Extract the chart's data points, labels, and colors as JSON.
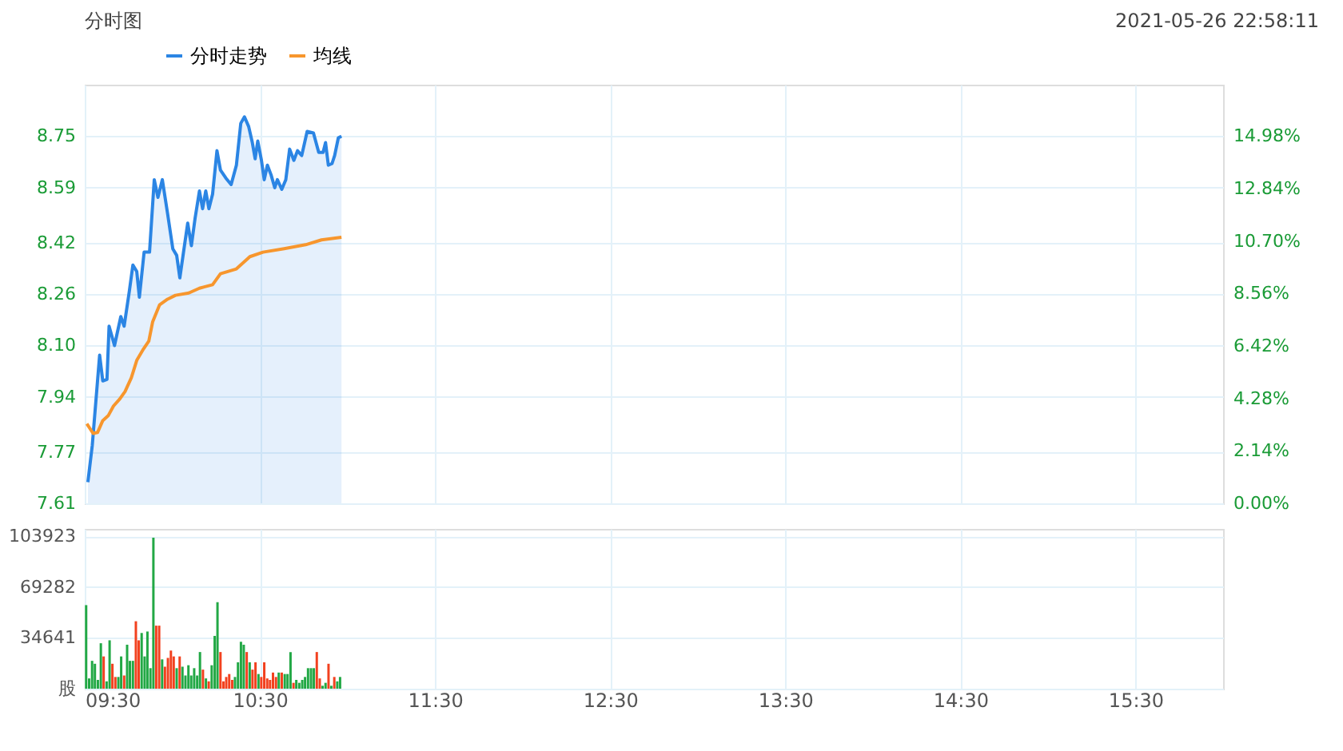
{
  "chart_data": [
    {
      "type": "line",
      "title": "分时图",
      "annotations": [
        "2021-05-26 22:58:11"
      ],
      "legend": "top left",
      "grid": true,
      "tick_labels": "y",
      "xlim": [
        9.5,
        16.0
      ],
      "xticks": [
        {
          "value": 9.5,
          "label": null
        },
        {
          "value": 10.5,
          "label": null
        },
        {
          "value": 11.5,
          "label": null
        },
        {
          "value": 12.5,
          "label": null
        },
        {
          "value": 13.5,
          "label": null
        },
        {
          "value": 14.5,
          "label": null
        },
        {
          "value": 15.5,
          "label": null
        }
      ],
      "ylim": [
        7.61,
        8.91
      ],
      "yticks": [
        {
          "value": 7.61,
          "label": "7.61"
        },
        {
          "value": 7.77,
          "label": "7.77"
        },
        {
          "value": 7.94,
          "label": "7.94"
        },
        {
          "value": 8.1,
          "label": "8.10"
        },
        {
          "value": 8.26,
          "label": "8.26"
        },
        {
          "value": 8.42,
          "label": "8.42"
        },
        {
          "value": 8.59,
          "label": "8.59"
        },
        {
          "value": 8.75,
          "label": "8.75"
        }
      ],
      "y2lim": [
        0,
        17.08
      ],
      "y2ticks": [
        {
          "value": 0,
          "label": "0.00%"
        },
        {
          "value": 2.14,
          "label": "2.14%"
        },
        {
          "value": 4.28,
          "label": "4.28%"
        },
        {
          "value": 6.42,
          "label": "6.42%"
        },
        {
          "value": 8.56,
          "label": "8.56%"
        },
        {
          "value": 10.7,
          "label": "10.70%"
        },
        {
          "value": 12.84,
          "label": "12.84%"
        },
        {
          "value": 14.98,
          "label": "14.98%"
        }
      ],
      "series": [
        {
          "name": "分时走势",
          "type": "area",
          "color": "#2b85e4",
          "x": [
            9.518,
            9.543,
            9.585,
            9.603,
            9.627,
            9.639,
            9.67,
            9.706,
            9.725,
            9.755,
            9.775,
            9.797,
            9.812,
            9.839,
            9.87,
            9.897,
            9.918,
            9.943,
            9.973,
            10.003,
            10.025,
            10.043,
            10.064,
            10.088,
            10.109,
            10.13,
            10.155,
            10.173,
            10.191,
            10.209,
            10.23,
            10.255,
            10.275,
            10.306,
            10.336,
            10.366,
            10.391,
            10.412,
            10.436,
            10.457,
            10.473,
            10.488,
            10.509,
            10.525,
            10.543,
            10.564,
            10.585,
            10.6,
            10.625,
            10.648,
            10.67,
            10.694,
            10.715,
            10.739,
            10.77,
            10.806,
            10.836,
            10.861,
            10.875,
            10.891,
            10.912,
            10.927,
            10.948,
            10.966
          ],
          "values": [
            7.676,
            7.79,
            8.07,
            7.99,
            7.995,
            8.16,
            8.1,
            8.19,
            8.16,
            8.27,
            8.35,
            8.33,
            8.25,
            8.39,
            8.39,
            8.615,
            8.56,
            8.615,
            8.51,
            8.4,
            8.38,
            8.31,
            8.39,
            8.48,
            8.41,
            8.495,
            8.58,
            8.525,
            8.58,
            8.525,
            8.57,
            8.705,
            8.645,
            8.62,
            8.6,
            8.66,
            8.79,
            8.81,
            8.78,
            8.73,
            8.68,
            8.735,
            8.675,
            8.615,
            8.66,
            8.63,
            8.59,
            8.615,
            8.585,
            8.615,
            8.71,
            8.675,
            8.705,
            8.69,
            8.765,
            8.76,
            8.7,
            8.7,
            8.73,
            8.66,
            8.665,
            8.69,
            8.745,
            8.75
          ]
        },
        {
          "name": "均线",
          "type": "line",
          "color": "#f7962d",
          "x": [
            9.512,
            9.548,
            9.573,
            9.603,
            9.634,
            9.664,
            9.7,
            9.73,
            9.766,
            9.797,
            9.836,
            9.866,
            9.888,
            9.927,
            9.973,
            10.018,
            10.094,
            10.155,
            10.23,
            10.275,
            10.366,
            10.443,
            10.518,
            10.639,
            10.761,
            10.852,
            10.966
          ],
          "values": [
            7.857,
            7.827,
            7.83,
            7.867,
            7.882,
            7.912,
            7.934,
            7.957,
            8.0,
            8.054,
            8.09,
            8.114,
            8.174,
            8.226,
            8.244,
            8.256,
            8.263,
            8.278,
            8.289,
            8.323,
            8.338,
            8.376,
            8.39,
            8.401,
            8.413,
            8.428,
            8.436
          ]
        }
      ]
    },
    {
      "type": "bar",
      "grid": true,
      "xlim": [
        9.5,
        16.0
      ],
      "xticks": [
        {
          "value": 9.5,
          "label": "09:30"
        },
        {
          "value": 10.5,
          "label": "10:30"
        },
        {
          "value": 11.5,
          "label": "11:30"
        },
        {
          "value": 12.5,
          "label": "12:30"
        },
        {
          "value": 13.5,
          "label": "13:30"
        },
        {
          "value": 14.5,
          "label": "14:30"
        },
        {
          "value": 15.5,
          "label": "15:30"
        }
      ],
      "ylim": [
        0,
        109000
      ],
      "yticks": [
        {
          "value": 0,
          "label": "股"
        },
        34641,
        69282,
        103923
      ],
      "x": [
        9.508,
        9.525,
        9.542,
        9.558,
        9.575,
        9.592,
        9.608,
        9.625,
        9.642,
        9.658,
        9.675,
        9.692,
        9.708,
        9.725,
        9.742,
        9.758,
        9.775,
        9.792,
        9.808,
        9.825,
        9.842,
        9.858,
        9.875,
        9.892,
        9.908,
        9.925,
        9.942,
        9.958,
        9.975,
        9.992,
        10.008,
        10.025,
        10.042,
        10.058,
        10.075,
        10.092,
        10.108,
        10.125,
        10.142,
        10.158,
        10.175,
        10.192,
        10.208,
        10.225,
        10.242,
        10.258,
        10.275,
        10.292,
        10.308,
        10.325,
        10.342,
        10.358,
        10.375,
        10.392,
        10.408,
        10.425,
        10.442,
        10.458,
        10.475,
        10.492,
        10.508,
        10.525,
        10.542,
        10.558,
        10.575,
        10.592,
        10.608,
        10.625,
        10.642,
        10.658,
        10.675,
        10.692,
        10.708,
        10.725,
        10.742,
        10.758,
        10.775,
        10.792,
        10.808,
        10.825,
        10.842,
        10.858,
        10.875,
        10.892,
        10.908,
        10.925,
        10.942,
        10.958
      ],
      "values": [
        57000,
        7000,
        19000,
        17000,
        6000,
        31000,
        22000,
        5000,
        33000,
        17000,
        8000,
        8000,
        22000,
        9000,
        30000,
        19000,
        19000,
        46000,
        33000,
        38000,
        22000,
        39000,
        14000,
        103000,
        43000,
        43000,
        20000,
        15000,
        21000,
        26000,
        22000,
        14000,
        22000,
        15000,
        9000,
        16000,
        9000,
        14000,
        9000,
        25000,
        13000,
        7000,
        5000,
        16000,
        36000,
        59000,
        25000,
        5000,
        8000,
        10000,
        6000,
        8000,
        18000,
        32000,
        30000,
        25000,
        18000,
        13000,
        18000,
        10000,
        8000,
        18000,
        7000,
        6000,
        11000,
        8000,
        11000,
        11000,
        10000,
        10000,
        25000,
        4000,
        6000,
        4000,
        6000,
        8000,
        14000,
        14000,
        14000,
        25000,
        7000,
        2000,
        4000,
        17000,
        2000,
        8000,
        5000,
        8000
      ],
      "colors": [
        "#22a845",
        "#22a845",
        "#22a845",
        "#22a845",
        "#22a845",
        "#22a845",
        "#f2411f",
        "#22a845",
        "#22a845",
        "#f2411f",
        "#f2411f",
        "#22a845",
        "#22a845",
        "#f2411f",
        "#22a845",
        "#22a845",
        "#22a845",
        "#f2411f",
        "#f2411f",
        "#22a845",
        "#22a845",
        "#22a845",
        "#22a845",
        "#22a845",
        "#f2411f",
        "#f2411f",
        "#22a845",
        "#f2411f",
        "#f2411f",
        "#f2411f",
        "#f2411f",
        "#22a845",
        "#f2411f",
        "#22a845",
        "#22a845",
        "#22a845",
        "#22a845",
        "#22a845",
        "#22a845",
        "#22a845",
        "#f2411f",
        "#22a845",
        "#f2411f",
        "#22a845",
        "#22a845",
        "#22a845",
        "#f2411f",
        "#f2411f",
        "#f2411f",
        "#f2411f",
        "#f2411f",
        "#22a845",
        "#22a845",
        "#22a845",
        "#22a845",
        "#f2411f",
        "#22a845",
        "#f2411f",
        "#f2411f",
        "#22a845",
        "#f2411f",
        "#f2411f",
        "#f2411f",
        "#f2411f",
        "#f2411f",
        "#f2411f",
        "#22a845",
        "#f2411f",
        "#22a845",
        "#22a845",
        "#22a845",
        "#f2411f",
        "#22a845",
        "#22a845",
        "#22a845",
        "#22a845",
        "#22a845",
        "#22a845",
        "#22a845",
        "#f2411f",
        "#f2411f",
        "#22a845",
        "#22a845",
        "#f2411f",
        "#22a845",
        "#f2411f",
        "#22a845",
        "#22a845"
      ]
    }
  ]
}
